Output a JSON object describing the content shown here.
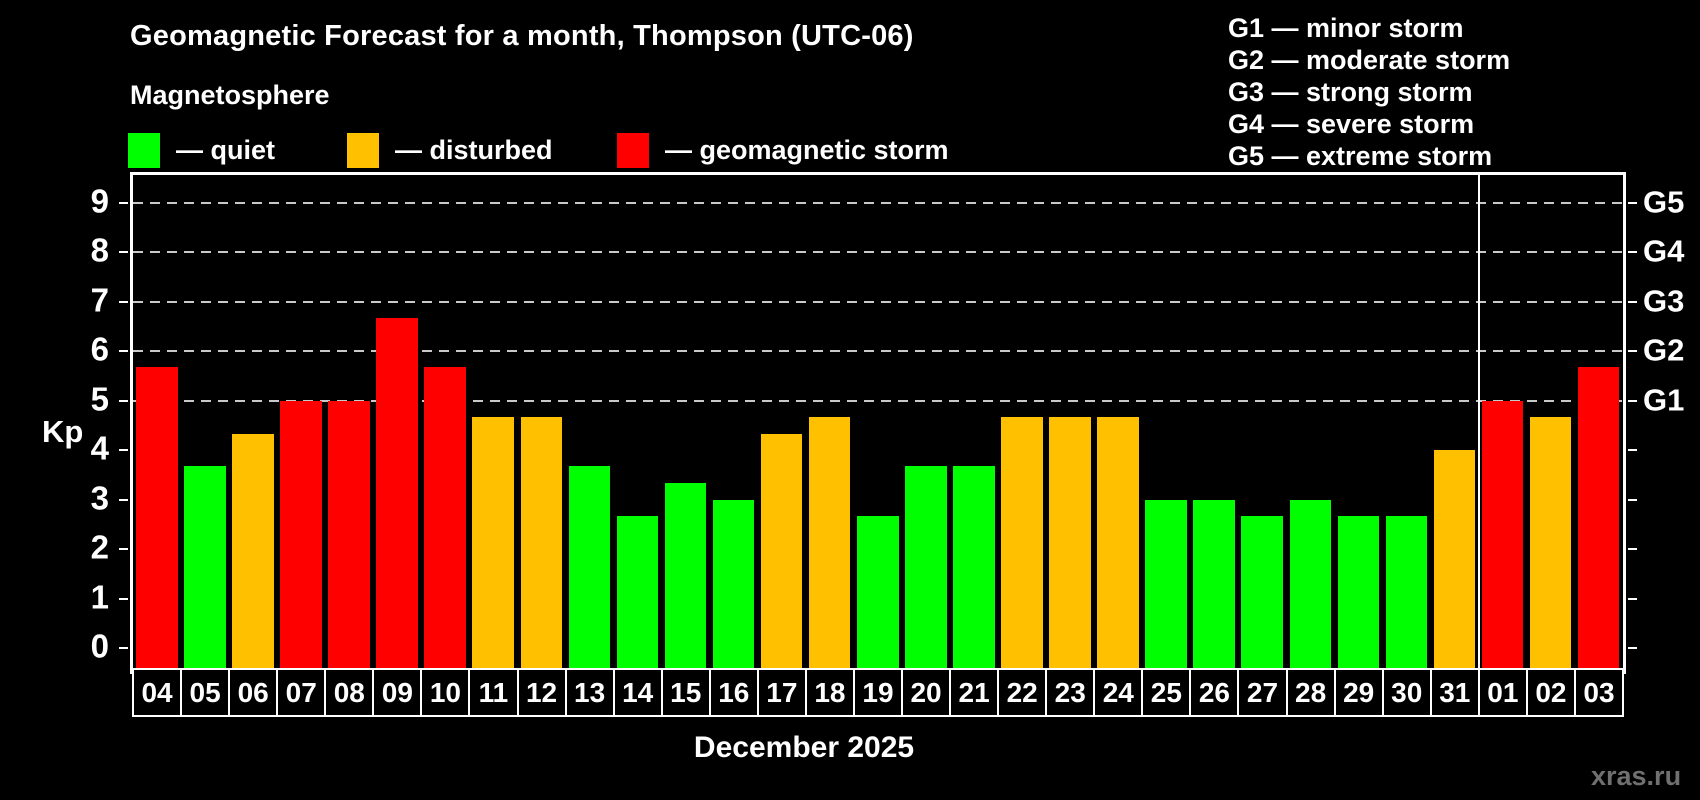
{
  "header": {
    "title": "Geomagnetic Forecast for a month, Thompson (UTC-06)",
    "subtitle": "Magnetosphere"
  },
  "legend": {
    "items": [
      {
        "state": "quiet",
        "label": "— quiet",
        "color": "#00ff00"
      },
      {
        "state": "disturbed",
        "label": "— disturbed",
        "color": "#ffc000"
      },
      {
        "state": "storm",
        "label": "— geomagnetic storm",
        "color": "#ff0000"
      }
    ]
  },
  "g_scale_legend": {
    "items": [
      "G1 — minor storm",
      "G2 — moderate storm",
      "G3 — strong storm",
      "G4 — severe storm",
      "G5 — extreme storm"
    ]
  },
  "chart_data": {
    "type": "bar",
    "title": "Geomagnetic Forecast for a month, Thompson (UTC-06)",
    "ylabel": "Kp",
    "xlabel": "December 2025",
    "ylim": [
      0,
      9
    ],
    "yticks": [
      0,
      1,
      2,
      3,
      4,
      5,
      6,
      7,
      8,
      9
    ],
    "gridline_levels": [
      5,
      6,
      7,
      8,
      9
    ],
    "grid_color": "#c9c9c9",
    "right_axis_labels": [
      {
        "level": 5,
        "text": "G1"
      },
      {
        "level": 6,
        "text": "G2"
      },
      {
        "level": 7,
        "text": "G3"
      },
      {
        "level": 8,
        "text": "G4"
      },
      {
        "level": 9,
        "text": "G5"
      }
    ],
    "categories": [
      "04",
      "05",
      "06",
      "07",
      "08",
      "09",
      "10",
      "11",
      "12",
      "13",
      "14",
      "15",
      "16",
      "17",
      "18",
      "19",
      "20",
      "21",
      "22",
      "23",
      "24",
      "25",
      "26",
      "27",
      "28",
      "29",
      "30",
      "31",
      "01",
      "02",
      "03"
    ],
    "values": [
      5.67,
      3.67,
      4.33,
      5.0,
      5.0,
      6.67,
      5.67,
      4.67,
      4.67,
      3.67,
      2.67,
      3.33,
      3.0,
      4.33,
      4.67,
      2.67,
      3.67,
      3.67,
      4.67,
      4.67,
      4.67,
      3.0,
      3.0,
      2.67,
      3.0,
      2.67,
      2.67,
      4.0,
      5.0,
      4.67,
      5.67
    ],
    "states": [
      "storm",
      "quiet",
      "disturbed",
      "storm",
      "storm",
      "storm",
      "storm",
      "disturbed",
      "disturbed",
      "quiet",
      "quiet",
      "quiet",
      "quiet",
      "disturbed",
      "disturbed",
      "quiet",
      "quiet",
      "quiet",
      "disturbed",
      "disturbed",
      "disturbed",
      "quiet",
      "quiet",
      "quiet",
      "quiet",
      "quiet",
      "quiet",
      "disturbed",
      "storm",
      "disturbed",
      "storm"
    ],
    "bar_colors": {
      "quiet": "#00ff00",
      "disturbed": "#ffc000",
      "storm": "#ff0000"
    },
    "month_separator_after_index": 27,
    "legend_position": "top"
  },
  "footer": {
    "month_label": "December 2025",
    "watermark": "xras.ru"
  }
}
